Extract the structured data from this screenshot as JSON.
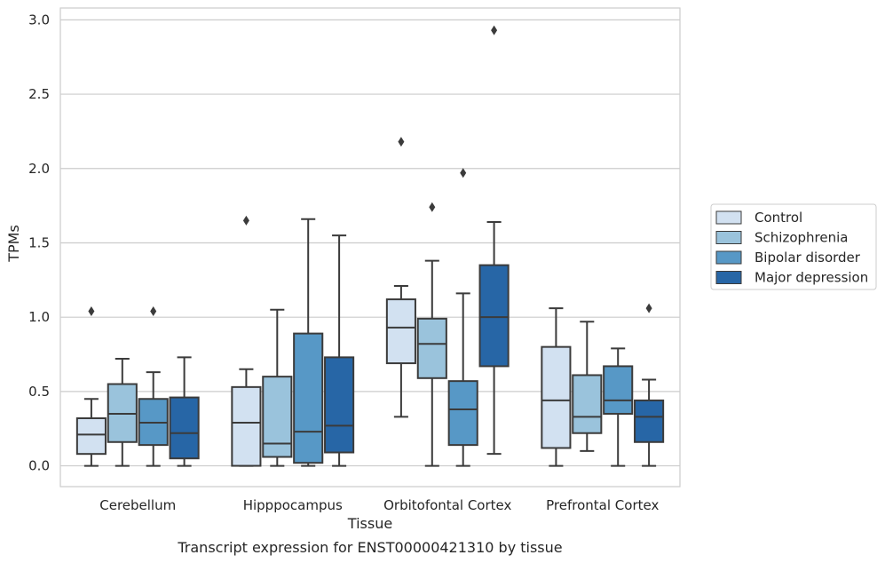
{
  "caption": "Transcript expression for ENST00000421310 by tissue",
  "chart_data": {
    "type": "box",
    "xlabel": "Tissue",
    "ylabel": "TPMs",
    "ylim": [
      -0.14,
      3.08
    ],
    "yticks": [
      "0.0",
      "0.5",
      "1.0",
      "1.5",
      "2.0",
      "2.5",
      "3.0"
    ],
    "grid": true,
    "legend_position": "right",
    "categories": [
      "Cerebellum",
      "Hipppocampus",
      "Orbitofontal Cortex",
      "Prefrontal Cortex"
    ],
    "series": [
      {
        "name": "Control",
        "color": "#d2e1f1",
        "boxes": [
          {
            "whisker_low": 0.0,
            "q1": 0.08,
            "median": 0.21,
            "q3": 0.32,
            "whisker_high": 0.45,
            "outliers": [
              1.04
            ]
          },
          {
            "whisker_low": 0.0,
            "q1": 0.0,
            "median": 0.29,
            "q3": 0.53,
            "whisker_high": 0.65,
            "outliers": [
              1.65
            ]
          },
          {
            "whisker_low": 0.33,
            "q1": 0.69,
            "median": 0.93,
            "q3": 1.12,
            "whisker_high": 1.21,
            "outliers": [
              2.18
            ]
          },
          {
            "whisker_low": 0.0,
            "q1": 0.12,
            "median": 0.44,
            "q3": 0.8,
            "whisker_high": 1.06,
            "outliers": []
          }
        ]
      },
      {
        "name": "Schizophrenia",
        "color": "#9ac3dc",
        "boxes": [
          {
            "whisker_low": 0.0,
            "q1": 0.16,
            "median": 0.35,
            "q3": 0.55,
            "whisker_high": 0.72,
            "outliers": []
          },
          {
            "whisker_low": 0.0,
            "q1": 0.06,
            "median": 0.15,
            "q3": 0.6,
            "whisker_high": 1.05,
            "outliers": []
          },
          {
            "whisker_low": 0.0,
            "q1": 0.59,
            "median": 0.82,
            "q3": 0.99,
            "whisker_high": 1.38,
            "outliers": [
              1.74
            ]
          },
          {
            "whisker_low": 0.1,
            "q1": 0.22,
            "median": 0.33,
            "q3": 0.61,
            "whisker_high": 0.97,
            "outliers": []
          }
        ]
      },
      {
        "name": "Bipolar disorder",
        "color": "#5798c6",
        "boxes": [
          {
            "whisker_low": 0.0,
            "q1": 0.14,
            "median": 0.29,
            "q3": 0.45,
            "whisker_high": 0.63,
            "outliers": [
              1.04
            ]
          },
          {
            "whisker_low": 0.0,
            "q1": 0.02,
            "median": 0.23,
            "q3": 0.89,
            "whisker_high": 1.66,
            "outliers": []
          },
          {
            "whisker_low": 0.0,
            "q1": 0.14,
            "median": 0.38,
            "q3": 0.57,
            "whisker_high": 1.16,
            "outliers": [
              1.97
            ]
          },
          {
            "whisker_low": 0.0,
            "q1": 0.35,
            "median": 0.44,
            "q3": 0.67,
            "whisker_high": 0.79,
            "outliers": []
          }
        ]
      },
      {
        "name": "Major depression",
        "color": "#2766a6",
        "boxes": [
          {
            "whisker_low": 0.0,
            "q1": 0.05,
            "median": 0.22,
            "q3": 0.46,
            "whisker_high": 0.73,
            "outliers": []
          },
          {
            "whisker_low": 0.0,
            "q1": 0.09,
            "median": 0.27,
            "q3": 0.73,
            "whisker_high": 1.55,
            "outliers": []
          },
          {
            "whisker_low": 0.08,
            "q1": 0.67,
            "median": 1.0,
            "q3": 1.35,
            "whisker_high": 1.64,
            "outliers": [
              2.93
            ]
          },
          {
            "whisker_low": 0.0,
            "q1": 0.16,
            "median": 0.33,
            "q3": 0.44,
            "whisker_high": 0.58,
            "outliers": [
              1.06
            ]
          }
        ]
      }
    ]
  }
}
